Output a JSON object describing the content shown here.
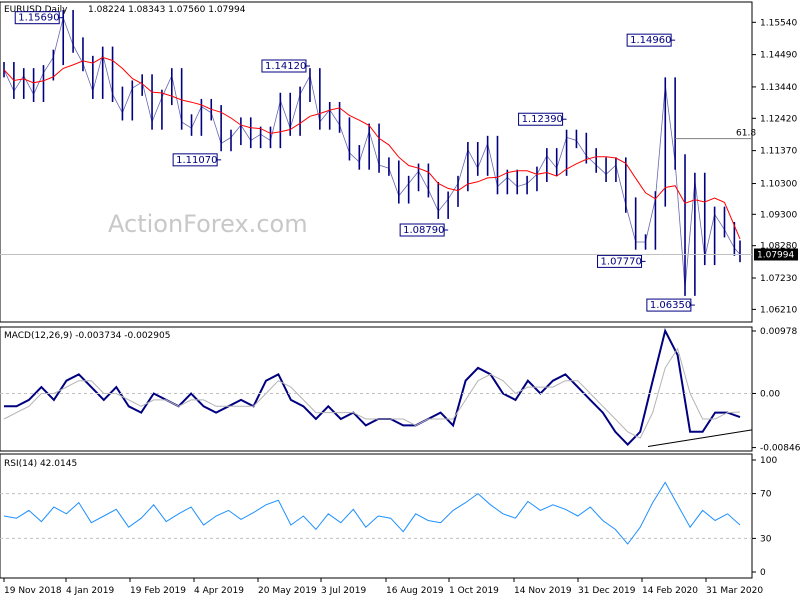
{
  "chart_data": [
    {
      "panel": "price",
      "type": "ohlc",
      "title": "EURUSD,Daily",
      "ohlc": "1.08224 1.08343 1.07560 1.07994",
      "ylim": [
        1.058,
        1.162
      ],
      "yticks": [
        "1.15540",
        "1.14490",
        "1.13440",
        "1.12420",
        "1.11370",
        "1.10300",
        "1.09300",
        "1.08280",
        "1.07230",
        "1.06210"
      ],
      "current_price": "1.07994",
      "current_value": 1.07994,
      "moving_average_color": "#ff0000",
      "bar_color": "#000080",
      "series": [
        {
          "x": "2018-11-19",
          "y": 1.14
        },
        {
          "x": "2018-11-26",
          "y": 1.133
        },
        {
          "x": "2018-12-03",
          "y": 1.138
        },
        {
          "x": "2018-12-10",
          "y": 1.132
        },
        {
          "x": "2018-12-17",
          "y": 1.139
        },
        {
          "x": "2018-12-24",
          "y": 1.144
        },
        {
          "x": "2018-12-31",
          "y": 1.1569
        },
        {
          "x": "2019-01-07",
          "y": 1.148
        },
        {
          "x": "2019-01-14",
          "y": 1.142
        },
        {
          "x": "2019-01-21",
          "y": 1.133
        },
        {
          "x": "2019-01-28",
          "y": 1.145
        },
        {
          "x": "2019-02-04",
          "y": 1.132
        },
        {
          "x": "2019-02-11",
          "y": 1.126
        },
        {
          "x": "2019-02-18",
          "y": 1.134
        },
        {
          "x": "2019-02-25",
          "y": 1.136
        },
        {
          "x": "2019-03-04",
          "y": 1.123
        },
        {
          "x": "2019-03-11",
          "y": 1.131
        },
        {
          "x": "2019-03-18",
          "y": 1.138
        },
        {
          "x": "2019-03-25",
          "y": 1.123
        },
        {
          "x": "2019-04-01",
          "y": 1.121
        },
        {
          "x": "2019-04-08",
          "y": 1.128
        },
        {
          "x": "2019-04-15",
          "y": 1.126
        },
        {
          "x": "2019-04-22",
          "y": 1.116
        },
        {
          "x": "2019-04-29",
          "y": 1.118
        },
        {
          "x": "2019-05-06",
          "y": 1.122
        },
        {
          "x": "2019-05-13",
          "y": 1.117
        },
        {
          "x": "2019-05-20",
          "y": 1.119
        },
        {
          "x": "2019-05-27",
          "y": 1.117
        },
        {
          "x": "2019-06-03",
          "y": 1.13
        },
        {
          "x": "2019-06-10",
          "y": 1.121
        },
        {
          "x": "2019-06-17",
          "y": 1.132
        },
        {
          "x": "2019-06-24",
          "y": 1.138
        },
        {
          "x": "2019-07-01",
          "y": 1.123
        },
        {
          "x": "2019-07-08",
          "y": 1.127
        },
        {
          "x": "2019-07-15",
          "y": 1.122
        },
        {
          "x": "2019-07-22",
          "y": 1.113
        },
        {
          "x": "2019-07-29",
          "y": 1.11
        },
        {
          "x": "2019-08-05",
          "y": 1.12
        },
        {
          "x": "2019-08-12",
          "y": 1.109
        },
        {
          "x": "2019-08-19",
          "y": 1.108
        },
        {
          "x": "2019-08-26",
          "y": 1.099
        },
        {
          "x": "2019-09-02",
          "y": 1.103
        },
        {
          "x": "2019-09-09",
          "y": 1.107
        },
        {
          "x": "2019-09-16",
          "y": 1.101
        },
        {
          "x": "2019-09-23",
          "y": 1.094
        },
        {
          "x": "2019-09-30",
          "y": 1.0979
        },
        {
          "x": "2019-10-07",
          "y": 1.103
        },
        {
          "x": "2019-10-14",
          "y": 1.114
        },
        {
          "x": "2019-10-21",
          "y": 1.108
        },
        {
          "x": "2019-10-28",
          "y": 1.116
        },
        {
          "x": "2019-11-04",
          "y": 1.102
        },
        {
          "x": "2019-11-11",
          "y": 1.105
        },
        {
          "x": "2019-11-18",
          "y": 1.102
        },
        {
          "x": "2019-11-25",
          "y": 1.103
        },
        {
          "x": "2019-12-02",
          "y": 1.106
        },
        {
          "x": "2019-12-09",
          "y": 1.112
        },
        {
          "x": "2019-12-16",
          "y": 1.108
        },
        {
          "x": "2019-12-23",
          "y": 1.118
        },
        {
          "x": "2019-12-30",
          "y": 1.117
        },
        {
          "x": "2020-01-06",
          "y": 1.112
        },
        {
          "x": "2020-01-13",
          "y": 1.109
        },
        {
          "x": "2020-01-20",
          "y": 1.106
        },
        {
          "x": "2020-01-27",
          "y": 1.109
        },
        {
          "x": "2020-02-03",
          "y": 1.096
        },
        {
          "x": "2020-02-10",
          "y": 1.084
        },
        {
          "x": "2020-02-17",
          "y": 1.084
        },
        {
          "x": "2020-02-24",
          "y": 1.098
        },
        {
          "x": "2020-03-02",
          "y": 1.135
        },
        {
          "x": "2020-03-09",
          "y": 1.11
        },
        {
          "x": "2020-03-16",
          "y": 1.069
        },
        {
          "x": "2020-03-23",
          "y": 1.104
        },
        {
          "x": "2020-03-30",
          "y": 1.079
        },
        {
          "x": "2020-04-06",
          "y": 1.093
        },
        {
          "x": "2020-04-13",
          "y": 1.088
        },
        {
          "x": "2020-04-20",
          "y": 1.082
        },
        {
          "x": "2020-04-24",
          "y": 1.07994
        }
      ],
      "labels": [
        {
          "text": "1.15690",
          "x": "2018-12-31",
          "y": 1.1569
        },
        {
          "text": "1.14120",
          "x": "2019-06-24",
          "y": 1.1412
        },
        {
          "text": "1.11070",
          "x": "2019-04-22",
          "y": 1.1107
        },
        {
          "text": "1.08790",
          "x": "2019-09-30",
          "y": 1.0879
        },
        {
          "text": "1.12390",
          "x": "2019-12-23",
          "y": 1.1239
        },
        {
          "text": "1.14960",
          "x": "2020-03-09",
          "y": 1.1496
        },
        {
          "text": "1.07770",
          "x": "2020-02-17",
          "y": 1.0777
        },
        {
          "text": "1.06350",
          "x": "2020-03-23",
          "y": 1.0635
        }
      ],
      "fib_level": {
        "label": "61.8",
        "value": 1.1176
      }
    },
    {
      "panel": "macd",
      "type": "line",
      "title": "MACD(12,26,9) -0.003734 -0.002905",
      "ylim": [
        -0.009,
        0.0104
      ],
      "yticks": [
        "0.00978",
        "0.00",
        "-0.008464"
      ],
      "series": [
        {
          "name": "MACD",
          "color": "#000080",
          "values": [
            -0.002,
            -0.002,
            -0.001,
            0.001,
            -0.001,
            0.002,
            0.003,
            0.001,
            -0.001,
            0.001,
            -0.002,
            -0.003,
            0.0,
            -0.001,
            -0.002,
            0.0,
            -0.002,
            -0.003,
            -0.002,
            -0.001,
            -0.002,
            0.002,
            0.003,
            -0.001,
            -0.002,
            -0.004,
            -0.002,
            -0.004,
            -0.003,
            -0.005,
            -0.004,
            -0.004,
            -0.005,
            -0.005,
            -0.004,
            -0.003,
            -0.005,
            0.002,
            0.004,
            0.003,
            0.0,
            -0.001,
            0.002,
            0.0,
            0.002,
            0.003,
            0.001,
            -0.001,
            -0.003,
            -0.006,
            -0.008,
            -0.006,
            0.002,
            0.0098,
            0.006,
            -0.006,
            -0.006,
            -0.003,
            -0.003,
            -0.0037
          ]
        },
        {
          "name": "Signal",
          "color": "#b4b4b4",
          "values": [
            -0.004,
            -0.003,
            -0.002,
            0.0,
            0.0,
            0.001,
            0.002,
            0.002,
            0.0,
            0.0,
            -0.001,
            -0.002,
            -0.001,
            -0.001,
            -0.002,
            -0.001,
            -0.001,
            -0.002,
            -0.002,
            -0.002,
            -0.002,
            0.0,
            0.002,
            0.001,
            -0.001,
            -0.003,
            -0.003,
            -0.003,
            -0.003,
            -0.004,
            -0.004,
            -0.004,
            -0.004,
            -0.005,
            -0.004,
            -0.004,
            -0.004,
            -0.001,
            0.002,
            0.003,
            0.002,
            0.0,
            0.001,
            0.001,
            0.001,
            0.002,
            0.002,
            0.0,
            -0.002,
            -0.004,
            -0.006,
            -0.007,
            -0.003,
            0.004,
            0.007,
            0.0,
            -0.004,
            -0.004,
            -0.003,
            -0.0029
          ]
        }
      ],
      "trendline": {
        "color": "#000000",
        "from": -0.0083,
        "to": -0.0057
      }
    },
    {
      "panel": "rsi",
      "type": "line",
      "title": "RSI(14) 42.0145",
      "ylim": [
        0,
        100
      ],
      "yticks": [
        "100",
        "70",
        "30",
        "0"
      ],
      "levels": [
        70,
        30
      ],
      "series": [
        {
          "name": "RSI",
          "color": "#1e90ff",
          "values": [
            50,
            48,
            55,
            45,
            58,
            52,
            62,
            44,
            50,
            56,
            40,
            48,
            60,
            45,
            52,
            58,
            42,
            50,
            55,
            47,
            53,
            60,
            64,
            42,
            50,
            38,
            52,
            44,
            56,
            40,
            50,
            48,
            36,
            52,
            46,
            44,
            55,
            62,
            70,
            60,
            52,
            48,
            63,
            55,
            60,
            56,
            50,
            58,
            46,
            38,
            25,
            40,
            62,
            80,
            60,
            40,
            55,
            46,
            52,
            42
          ]
        }
      ]
    }
  ],
  "x_axis_labels": [
    "19 Nov 2018",
    "4 Jan 2019",
    "19 Feb 2019",
    "4 Apr 2019",
    "20 May 2019",
    "3 Jul 2019",
    "16 Aug 2019",
    "1 Oct 2019",
    "14 Nov 2019",
    "31 Dec 2019",
    "14 Feb 2020",
    "31 Mar 2020"
  ],
  "watermark": "ActionForex.com"
}
